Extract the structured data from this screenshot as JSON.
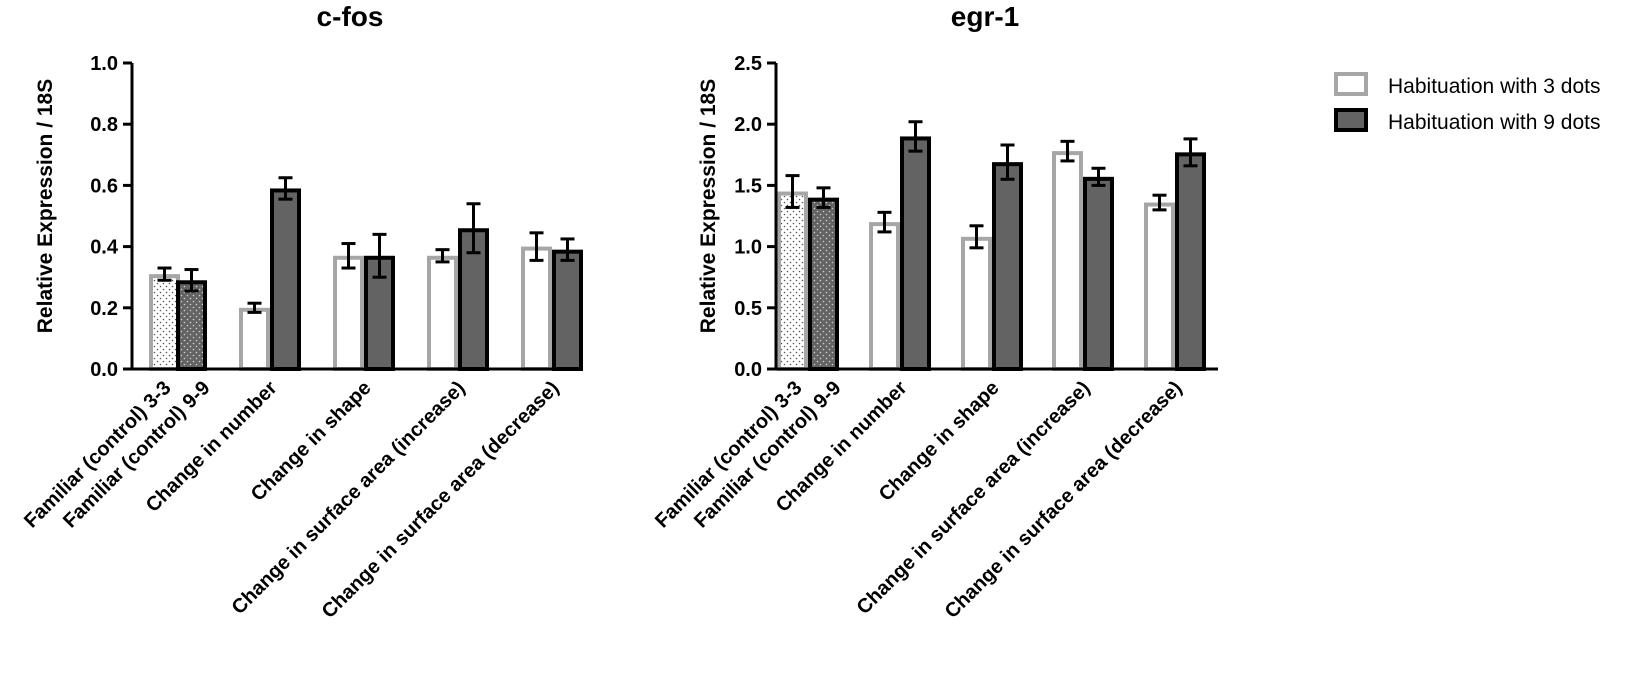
{
  "chart_data": [
    {
      "type": "bar",
      "title": "c-fos",
      "ylabel": "Relative Expression / 18S",
      "xlabel": "",
      "ylim": [
        0,
        1.0
      ],
      "yticks": [
        "0.0",
        "0.2",
        "0.4",
        "0.6",
        "0.8",
        "1.0"
      ],
      "categories": [
        "Familiar (control) 3-3",
        "Familiar (control) 9-9",
        "Change in number",
        "Change in shape",
        "Change in surface area (increase)",
        "Change in surface area (decrease)"
      ],
      "bars": [
        {
          "category": 0,
          "series": "Habituation with 3 dots",
          "value": 0.31,
          "error": 0.02,
          "pattern": "dotted-light"
        },
        {
          "category": 1,
          "series": "Habituation with 9 dots",
          "value": 0.29,
          "error": 0.035,
          "pattern": "dotted-dark"
        },
        {
          "category": 2,
          "series": "Habituation with 3 dots",
          "value": 0.2,
          "error": 0.015
        },
        {
          "category": 2,
          "series": "Habituation with 9 dots",
          "value": 0.59,
          "error": 0.035
        },
        {
          "category": 3,
          "series": "Habituation with 3 dots",
          "value": 0.37,
          "error": 0.04
        },
        {
          "category": 3,
          "series": "Habituation with 9 dots",
          "value": 0.37,
          "error": 0.07
        },
        {
          "category": 4,
          "series": "Habituation with 3 dots",
          "value": 0.37,
          "error": 0.02
        },
        {
          "category": 4,
          "series": "Habituation with 9 dots",
          "value": 0.46,
          "error": 0.08
        },
        {
          "category": 5,
          "series": "Habituation with 3 dots",
          "value": 0.4,
          "error": 0.045
        },
        {
          "category": 5,
          "series": "Habituation with 9 dots",
          "value": 0.39,
          "error": 0.035
        }
      ]
    },
    {
      "type": "bar",
      "title": "egr-1",
      "ylabel": "Relative Expression / 18S",
      "xlabel": "",
      "ylim": [
        0,
        2.5
      ],
      "yticks": [
        "0.0",
        "0.5",
        "1.0",
        "1.5",
        "2.0",
        "2.5"
      ],
      "categories": [
        "Familiar (control) 3-3",
        "Familiar (control) 9-9",
        "Change in number",
        "Change in shape",
        "Change in surface area (increase)",
        "Change in surface area (decrease)"
      ],
      "bars": [
        {
          "category": 0,
          "series": "Habituation with 3 dots",
          "value": 1.45,
          "error": 0.13,
          "pattern": "dotted-light"
        },
        {
          "category": 1,
          "series": "Habituation with 9 dots",
          "value": 1.4,
          "error": 0.08,
          "pattern": "dotted-dark"
        },
        {
          "category": 2,
          "series": "Habituation with 3 dots",
          "value": 1.2,
          "error": 0.08
        },
        {
          "category": 2,
          "series": "Habituation with 9 dots",
          "value": 1.9,
          "error": 0.12
        },
        {
          "category": 3,
          "series": "Habituation with 3 dots",
          "value": 1.08,
          "error": 0.09
        },
        {
          "category": 3,
          "series": "Habituation with 9 dots",
          "value": 1.69,
          "error": 0.14
        },
        {
          "category": 4,
          "series": "Habituation with 3 dots",
          "value": 1.78,
          "error": 0.08
        },
        {
          "category": 4,
          "series": "Habituation with 9 dots",
          "value": 1.57,
          "error": 0.07
        },
        {
          "category": 5,
          "series": "Habituation with 3 dots",
          "value": 1.36,
          "error": 0.06
        },
        {
          "category": 5,
          "series": "Habituation with 9 dots",
          "value": 1.77,
          "error": 0.11
        }
      ]
    }
  ],
  "legend": {
    "placement": "top-right",
    "items": [
      {
        "label": "Habituation with 3 dots",
        "fill": "#ffffff",
        "stroke": "#a6a6a6"
      },
      {
        "label": "Habituation with 9 dots",
        "fill": "#636363",
        "stroke": "#000000"
      }
    ]
  },
  "colors": {
    "light_stroke": "#a6a6a6",
    "dark_fill": "#636363",
    "dark_stroke": "#000000",
    "axis": "#000000"
  }
}
